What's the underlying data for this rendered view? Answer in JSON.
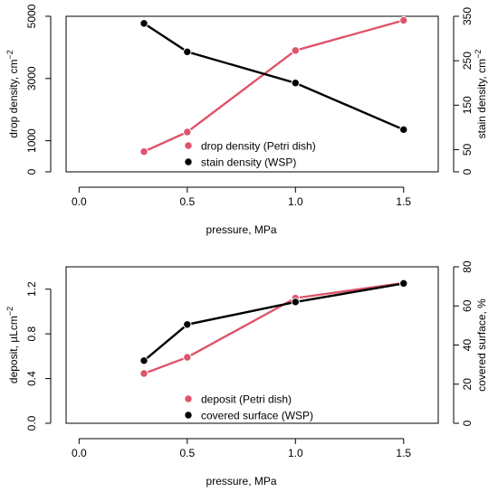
{
  "colors": {
    "series_a": "#df536b",
    "series_b": "#000000",
    "axis": "#000000",
    "background": "#ffffff"
  },
  "chart_data": [
    {
      "type": "line",
      "xlabel": "pressure, MPa",
      "ylabel_left": "drop density,  cm",
      "ylabel_left_sup": "−2",
      "ylabel_right": "stain density,  cm",
      "ylabel_right_sup": "−2",
      "x_ticks": [
        "0.0",
        "0.5",
        "1.0",
        "1.5"
      ],
      "y_left_ticks": [
        "0",
        "1000",
        "3000",
        "5000"
      ],
      "y_right_ticks": [
        "0",
        "50",
        "150",
        "250",
        "350"
      ],
      "xlim": [
        -0.06,
        1.66
      ],
      "ylim_left": [
        0,
        5000
      ],
      "ylim_right": [
        0,
        350
      ],
      "x_tick_values": [
        0,
        0.5,
        1,
        1.5
      ],
      "y_left_tick_values": [
        0,
        1000,
        3000,
        5000
      ],
      "y_right_tick_values": [
        0,
        50,
        150,
        250,
        350
      ],
      "series": [
        {
          "name": "drop density (Petri dish)",
          "axis": "left",
          "color": "#df536b",
          "x": [
            0.3,
            0.5,
            1.0,
            1.5
          ],
          "y": [
            650,
            1280,
            3900,
            4870
          ]
        },
        {
          "name": "stain density (WSP)",
          "axis": "right",
          "color": "#000000",
          "x": [
            0.3,
            0.5,
            1.0,
            1.5
          ],
          "y": [
            334,
            270,
            200,
            95
          ]
        }
      ],
      "legend_placement": "bottom-center"
    },
    {
      "type": "line",
      "xlabel": "pressure, MPa",
      "ylabel_left": "deposit,  µLcm",
      "ylabel_left_sup": "−2",
      "ylabel_right": "covered surface,  %",
      "ylabel_right_sup": "",
      "x_ticks": [
        "0.0",
        "0.5",
        "1.0",
        "1.5"
      ],
      "y_left_ticks": [
        "0.0",
        "0.4",
        "0.8",
        "1.2"
      ],
      "y_right_ticks": [
        "0",
        "20",
        "40",
        "60",
        "80"
      ],
      "xlim": [
        -0.06,
        1.66
      ],
      "ylim_left": [
        0,
        1.4
      ],
      "ylim_right": [
        0,
        80
      ],
      "x_tick_values": [
        0,
        0.5,
        1,
        1.5
      ],
      "y_left_tick_values": [
        0,
        0.4,
        0.8,
        1.2
      ],
      "y_right_tick_values": [
        0,
        20,
        40,
        60,
        80
      ],
      "series": [
        {
          "name": "deposit (Petri dish)",
          "axis": "left",
          "color": "#df536b",
          "x": [
            0.3,
            0.5,
            1.0,
            1.5
          ],
          "y": [
            0.445,
            0.59,
            1.12,
            1.255
          ]
        },
        {
          "name": "covered surface (WSP)",
          "axis": "right",
          "color": "#000000",
          "x": [
            0.3,
            0.5,
            1.0,
            1.5
          ],
          "y": [
            32,
            50.5,
            62,
            71.5
          ]
        }
      ],
      "legend_placement": "bottom-center"
    }
  ]
}
